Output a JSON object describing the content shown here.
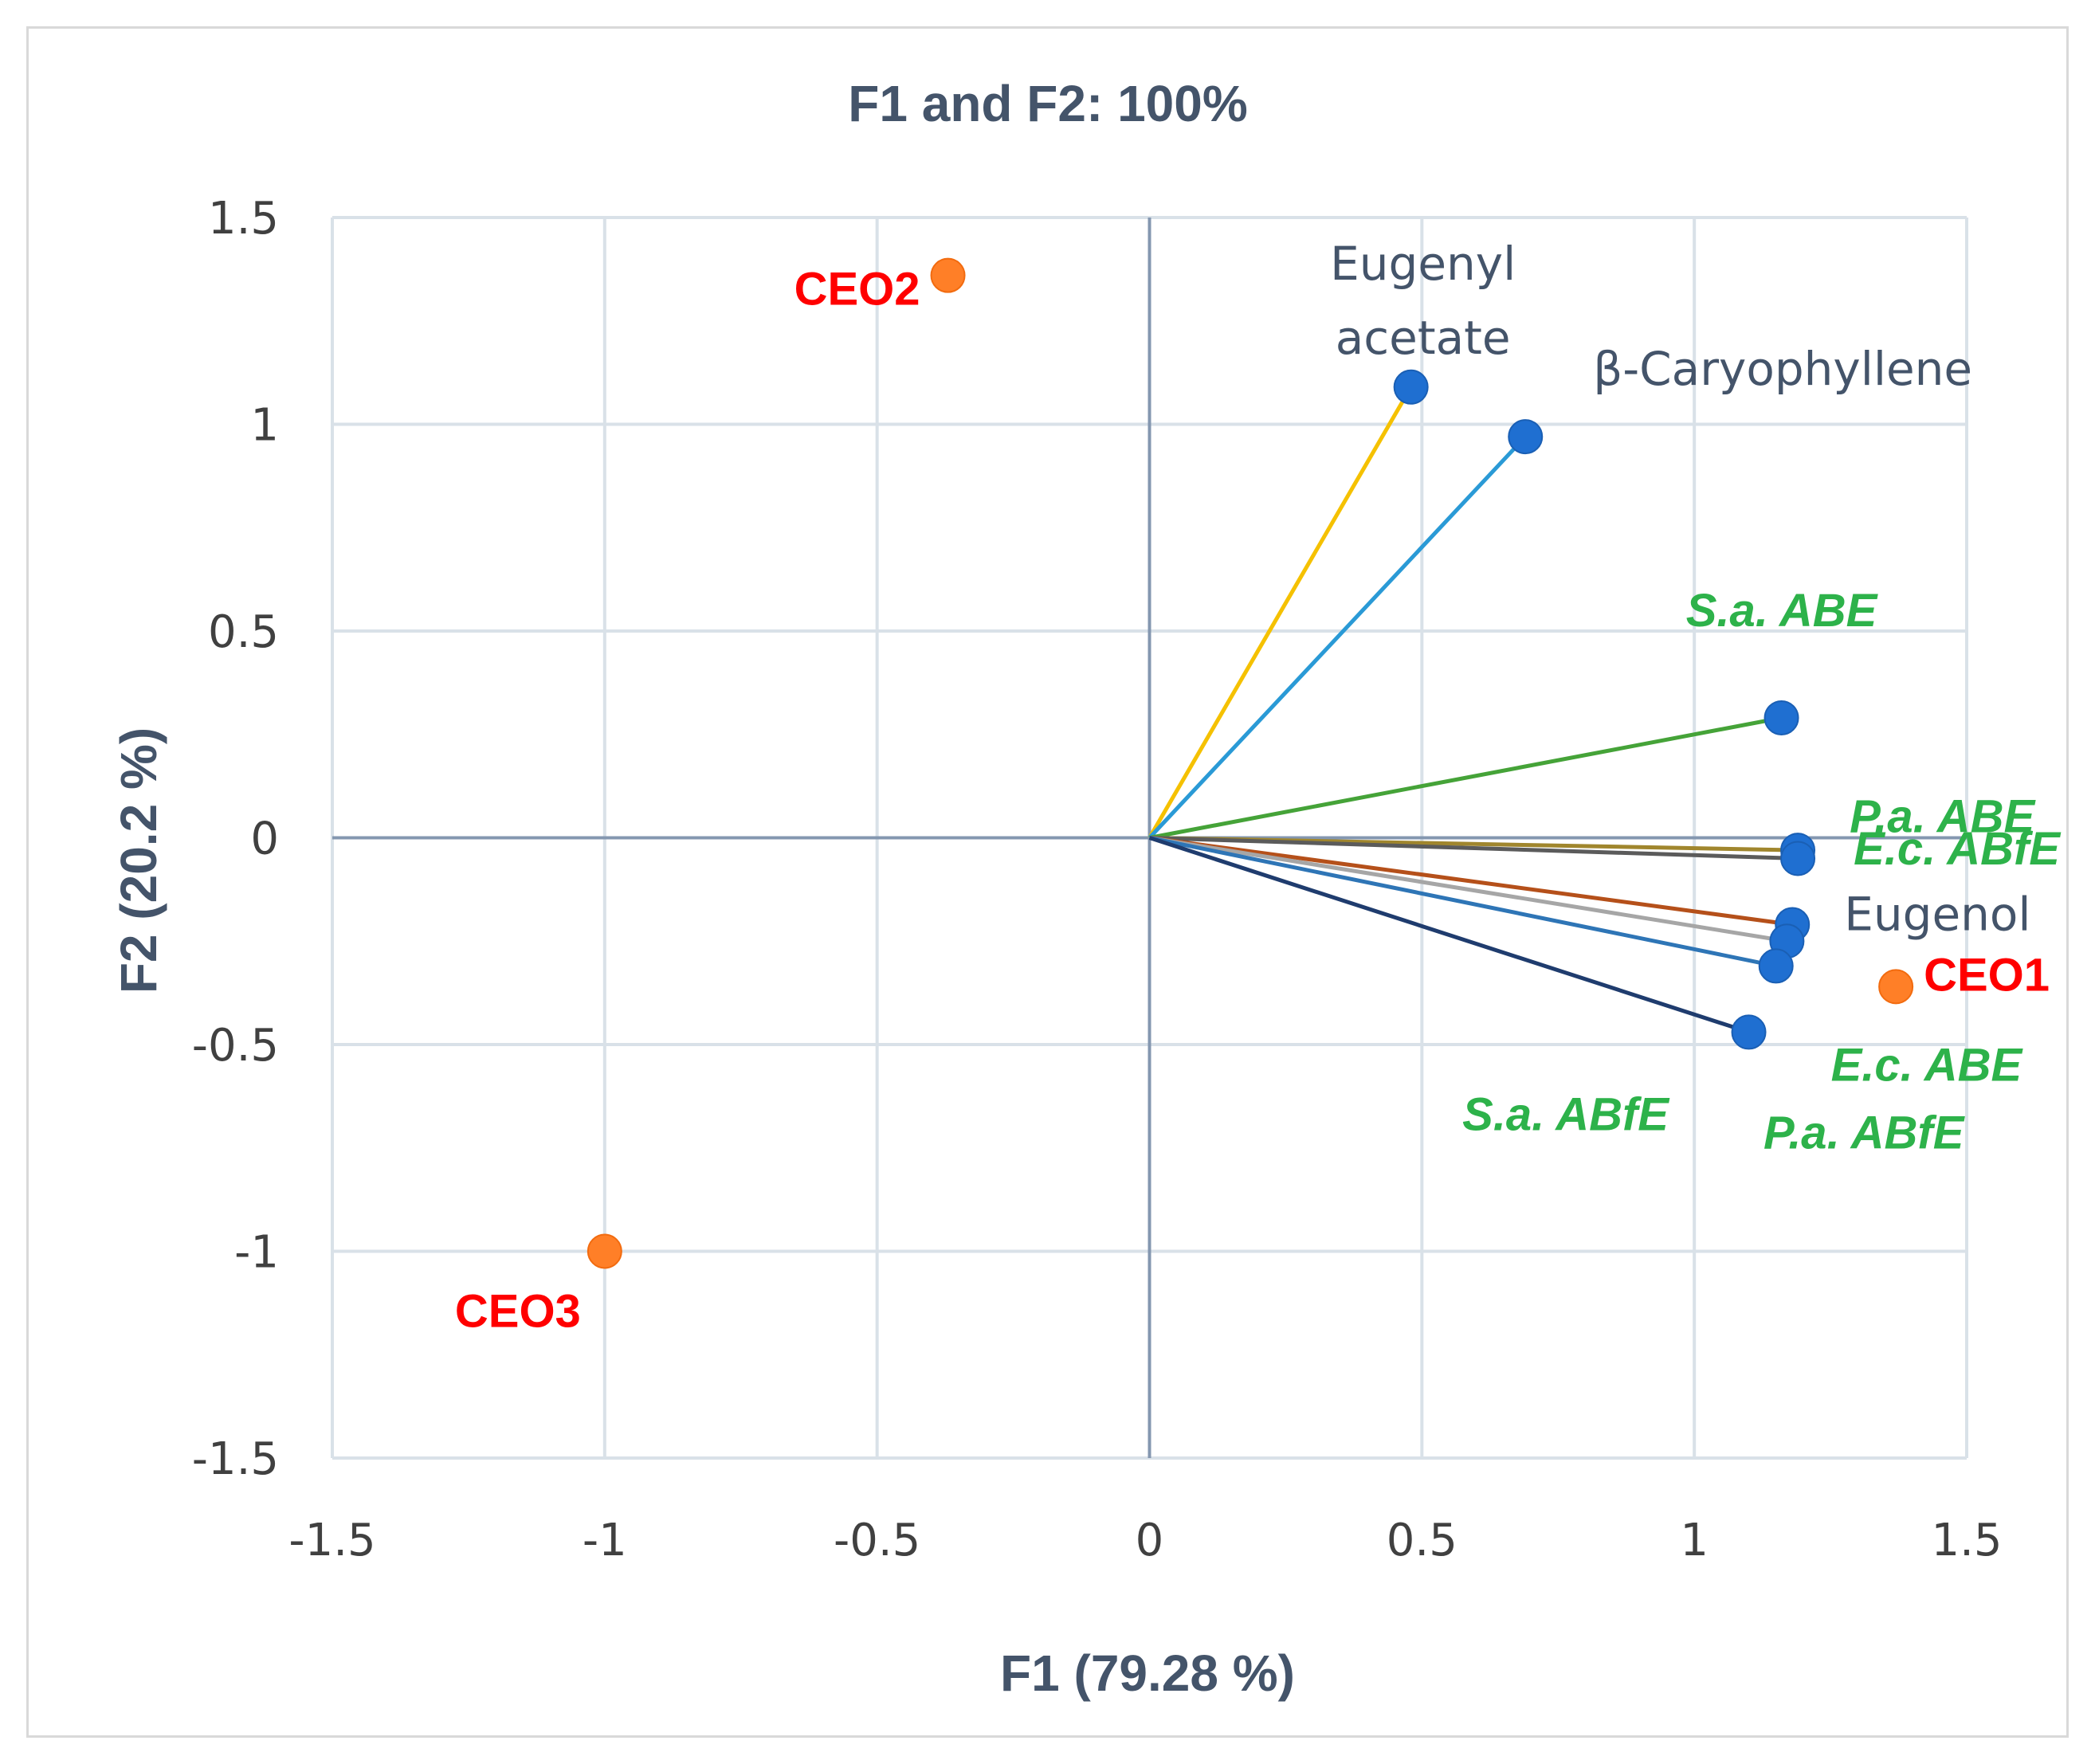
{
  "chart_data": {
    "type": "scatter",
    "title": "F1 and F2: 100%",
    "xlabel": "F1 (79.28 %)",
    "ylabel": "F2 (20.2 %)",
    "xlim": [
      -1.5,
      1.5
    ],
    "ylim": [
      -1.5,
      1.5
    ],
    "xticks": [
      -1.5,
      -1,
      -0.5,
      0,
      0.5,
      1,
      1.5
    ],
    "yticks": [
      -1.5,
      -1,
      -0.5,
      0,
      0.5,
      1,
      1.5
    ],
    "xtick_labels": [
      "-1.5",
      "-1",
      "-0.5",
      "0",
      "0.5",
      "1",
      "1.5"
    ],
    "ytick_labels": [
      "-1.5",
      "-1",
      "-0.5",
      "0",
      "0.5",
      "1",
      "1.5"
    ],
    "grid": true,
    "variables": [
      {
        "name": "Eugenyl acetate",
        "lines": [
          "Eugenyl",
          "acetate"
        ],
        "x": 0.48,
        "y": 1.09,
        "vector_color": "#f5c100",
        "style": "plain"
      },
      {
        "name": "β-Caryophyllene",
        "lines": [
          "β-Caryophyllene"
        ],
        "x": 0.69,
        "y": 0.97,
        "vector_color": "#2a9ad6",
        "style": "plain"
      },
      {
        "name": "S.a. ABE",
        "lines": [
          "S.a. ABE"
        ],
        "x": 1.16,
        "y": 0.29,
        "vector_color": "#45a338",
        "style": "green"
      },
      {
        "name": "E.c. ABfE",
        "lines": [
          "E.c. ABfE"
        ],
        "x": 1.19,
        "y": -0.03,
        "vector_color": "#a0862d",
        "style": "green"
      },
      {
        "name": "P.a. ABE",
        "lines": [
          "P.a. ABE"
        ],
        "x": 1.19,
        "y": -0.05,
        "vector_color": "#5b5b5b",
        "style": "green"
      },
      {
        "name": "Eugenol",
        "lines": [
          "Eugenol"
        ],
        "x": 1.18,
        "y": -0.21,
        "vector_color": "#b5501a",
        "style": "plain"
      },
      {
        "name": "E.c. ABE",
        "lines": [
          "E.c. ABE"
        ],
        "x": 1.17,
        "y": -0.25,
        "vector_color": "#a6a6a6",
        "style": "green"
      },
      {
        "name": "P.a. ABfE",
        "lines": [
          "P.a. ABfE"
        ],
        "x": 1.15,
        "y": -0.31,
        "vector_color": "#2e75b6",
        "style": "green"
      },
      {
        "name": "S.a. ABfE",
        "lines": [
          "S.a. ABfE"
        ],
        "x": 1.1,
        "y": -0.47,
        "vector_color": "#1f3c6e",
        "style": "green"
      }
    ],
    "observations": [
      {
        "name": "CEO1",
        "x": 1.37,
        "y": -0.36
      },
      {
        "name": "CEO2",
        "x": -0.37,
        "y": 1.36
      },
      {
        "name": "CEO3",
        "x": -1.0,
        "y": -1.0
      }
    ],
    "colors": {
      "variable_point": "#1f6fd1",
      "observation_point": "#ff7f27",
      "grid": "#d9e1e8",
      "zero_axis": "#8497b0",
      "title": "#44546a",
      "observation_label": "#ff0000",
      "green_label": "#2db24a"
    }
  }
}
